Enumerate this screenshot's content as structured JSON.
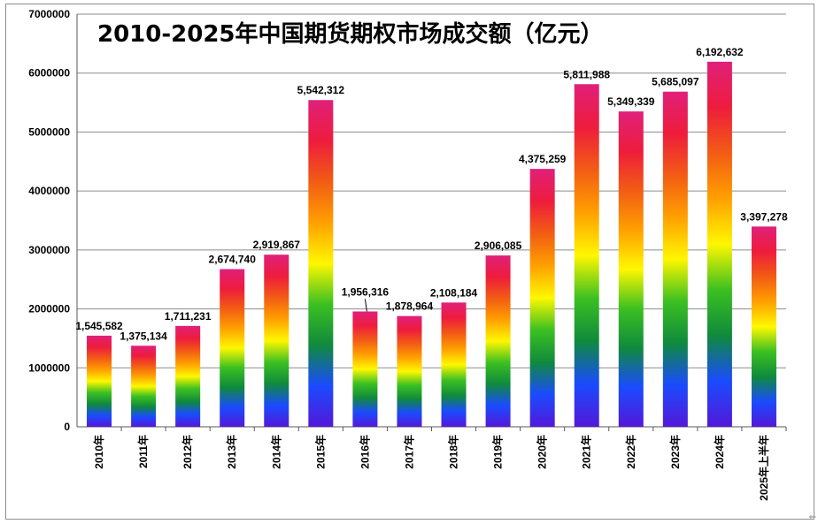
{
  "chart_data": {
    "type": "bar",
    "title": "2010-2025年中国期货期权市场成交额（亿元）",
    "xlabel": "",
    "ylabel": "",
    "ylim": [
      0,
      7000000
    ],
    "yticks": [
      0,
      1000000,
      2000000,
      3000000,
      4000000,
      5000000,
      6000000,
      7000000
    ],
    "ytick_labels": [
      "0",
      "1000000",
      "2000000",
      "3000000",
      "4000000",
      "5000000",
      "6000000",
      "7000000"
    ],
    "grid": true,
    "categories": [
      "2010年",
      "2011年",
      "2012年",
      "2013年",
      "2014年",
      "2015年",
      "2016年",
      "2017年",
      "2018年",
      "2019年",
      "2020年",
      "2021年",
      "2022年",
      "2023年",
      "2024年",
      "2025年上半年"
    ],
    "values": [
      1545582,
      1375134,
      1711231,
      2674740,
      2919867,
      5542312,
      1956316,
      1878964,
      2108184,
      2906085,
      4375259,
      5811988,
      5349339,
      5685097,
      6192632,
      3397278
    ],
    "data_labels": [
      "1,545,582",
      "1,375,134",
      "1,711,231",
      "2,674,740",
      "2,919,867",
      "5,542,312",
      "1,956,316",
      "1,878,964",
      "2,108,184",
      "2,906,085",
      "4,375,259",
      "5,811,988",
      "5,349,339",
      "5,685,097",
      "6,192,632",
      "3,397,278"
    ],
    "bar_fill": "rainbow gradient",
    "colors": {
      "grid": "#8c8c8c",
      "axis": "#595959",
      "text": "#000000",
      "gradient": [
        "#e0207a",
        "#ee1c3c",
        "#f25c14",
        "#ffa000",
        "#fff700",
        "#3cc021",
        "#0f8a3c",
        "#1a4bff",
        "#5318d8"
      ]
    },
    "corner_mark": "⇐"
  }
}
